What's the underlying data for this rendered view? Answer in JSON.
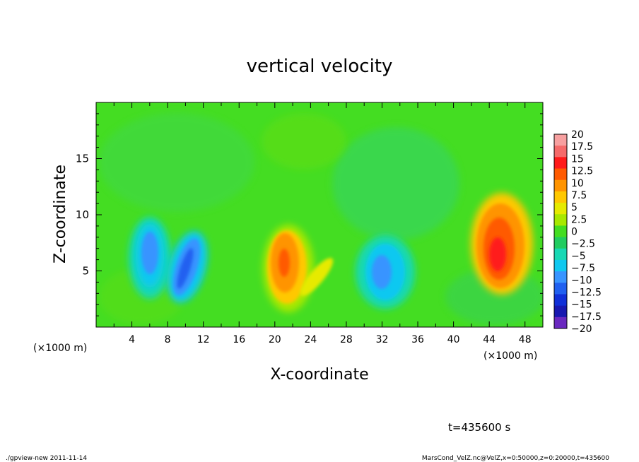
{
  "chart_data": {
    "type": "heatmap",
    "title": "vertical velocity",
    "xlabel": "X-coordinate",
    "ylabel": "Z-coordinate",
    "x_unit_left": "(×1000 m)",
    "x_unit_right": "(×1000 m)",
    "xlim": [
      0,
      50
    ],
    "ylim": [
      0,
      20
    ],
    "xticks": [
      4,
      8,
      12,
      16,
      20,
      24,
      28,
      32,
      36,
      40,
      44,
      48
    ],
    "yticks": [
      5,
      10,
      15
    ],
    "colorbar_labels": [
      "20",
      "17.5",
      "15",
      "12.5",
      "10",
      "7.5",
      "5",
      "2.5",
      "0",
      "−2.5",
      "−5",
      "−7.5",
      "−10",
      "−12.5",
      "−15",
      "−17.5",
      "−20"
    ],
    "colorbar_colors": [
      "#f7a0a0",
      "#f56a6a",
      "#ff1a1a",
      "#ff5a00",
      "#ff9400",
      "#ffc800",
      "#e6ea00",
      "#a8e800",
      "#44dd22",
      "#22cc60",
      "#18d8b4",
      "#10c8f0",
      "#3894ff",
      "#2060f0",
      "#1030d8",
      "#1818b0",
      "#6a28c0"
    ],
    "features": [
      {
        "x": 6.0,
        "z": 6.5,
        "value": -8.5
      },
      {
        "x": 10.0,
        "z": 5.5,
        "value": -11.5
      },
      {
        "x": 21.0,
        "z": 5.5,
        "value": 11
      },
      {
        "x": 25.0,
        "z": 5.0,
        "value": 7
      },
      {
        "x": 32.0,
        "z": 5.0,
        "value": -8
      },
      {
        "x": 45.0,
        "z": 6.5,
        "value": 14
      }
    ]
  },
  "footer": {
    "time": "t=435600 s",
    "left": "./gpview-new   2011-11-14",
    "right": "MarsCond_VelZ.nc@VelZ,x=0:50000,z=0:20000,t=435600"
  }
}
